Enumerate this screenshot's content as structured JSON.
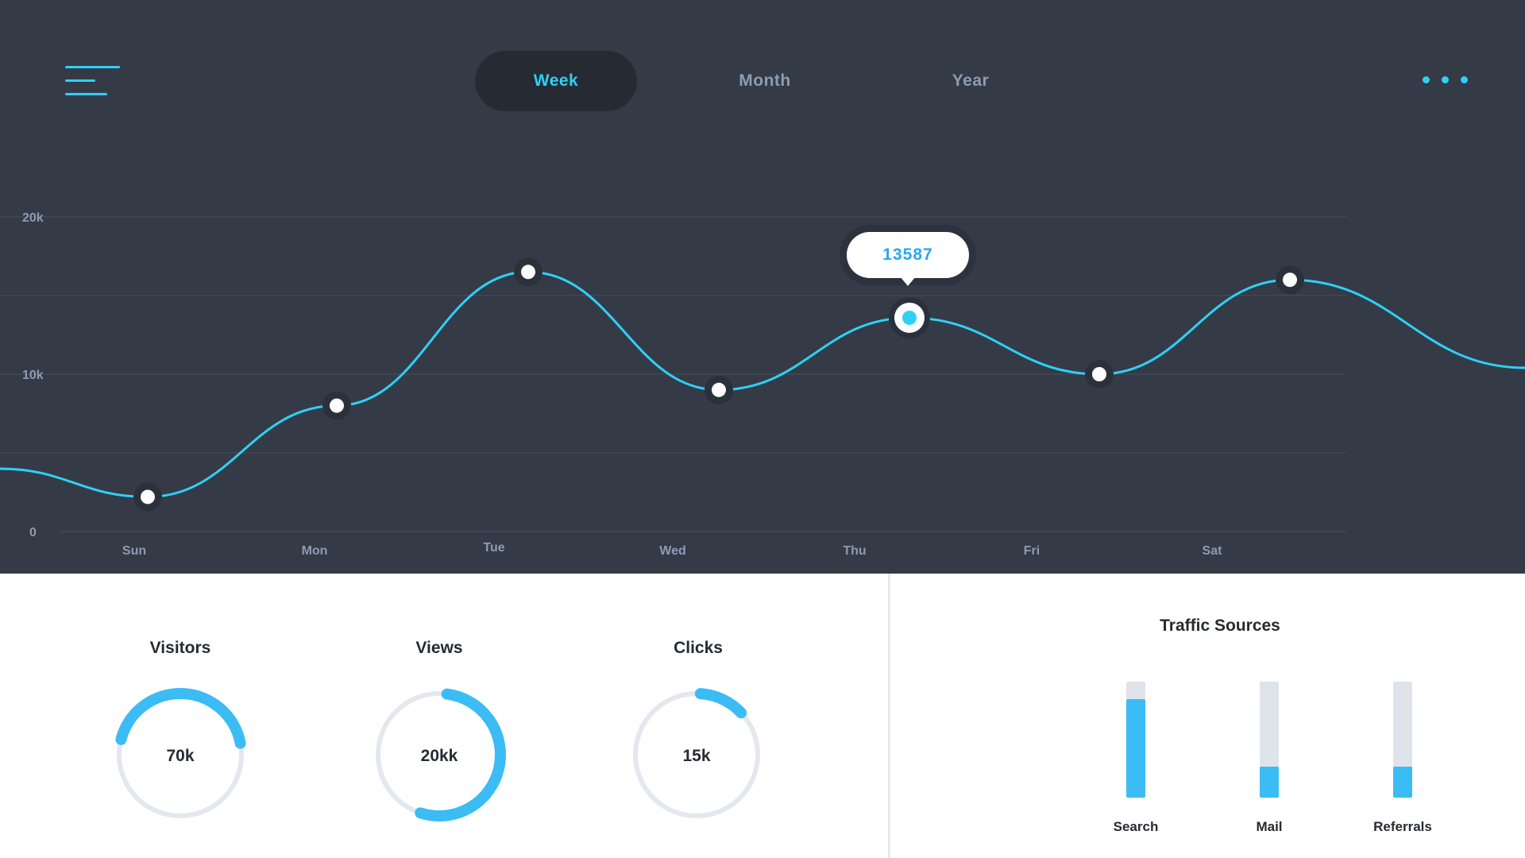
{
  "nav": {
    "menu_icon": "hamburger-menu-icon",
    "more_icon": "ellipsis-horizontal-icon",
    "tabs": [
      {
        "label": "Week",
        "active": true
      },
      {
        "label": "Month",
        "active": false
      },
      {
        "label": "Year",
        "active": false
      }
    ]
  },
  "colors": {
    "accent": "#2fd0f5",
    "header_bg": "#343b47",
    "bar_fill": "#3bbcf5",
    "text_dark": "#262b33",
    "muted": "#8b9cb5"
  },
  "chart_data": {
    "type": "line",
    "categories": [
      "Sun",
      "Mon",
      "Tue",
      "Wed",
      "Thu",
      "Fri",
      "Sat"
    ],
    "values": [
      2200,
      8000,
      16500,
      9000,
      13587,
      10000,
      16000
    ],
    "y_ticks": [
      "0",
      "10k",
      "20k"
    ],
    "ylim": [
      0,
      20000
    ],
    "grid": true,
    "highlighted": {
      "category": "Thu",
      "value": 13587,
      "label": "13587"
    }
  },
  "metrics": [
    {
      "label": "Visitors",
      "value": "70k",
      "fraction": 0.43
    },
    {
      "label": "Views",
      "value": "20kk",
      "fraction": 0.53
    },
    {
      "label": "Clicks",
      "value": "15k",
      "fraction": 0.12
    }
  ],
  "traffic": {
    "title": "Traffic Sources",
    "sources": [
      {
        "label": "Search",
        "fraction": 0.85
      },
      {
        "label": "Mail",
        "fraction": 0.27
      },
      {
        "label": "Referrals",
        "fraction": 0.27
      }
    ]
  }
}
